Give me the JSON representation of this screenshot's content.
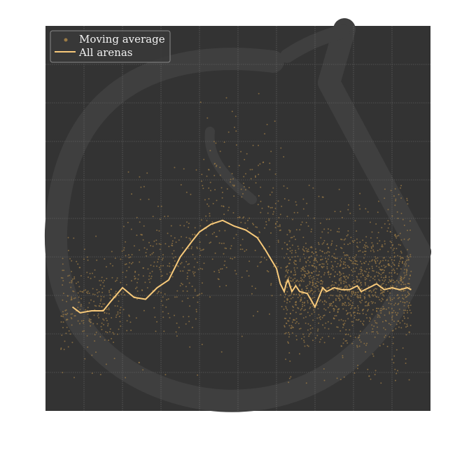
{
  "chart_data": {
    "type": "scatter",
    "title": "",
    "xlabel": "",
    "ylabel": "",
    "xlim": [
      0,
      100
    ],
    "ylim": [
      0,
      100
    ],
    "grid": true,
    "legend_location": "top-left",
    "colors": {
      "background": "#333333",
      "scatter": "#9a7a45",
      "line": "#f7c97a",
      "grid": "#6e6e6e",
      "watermark": "#3f3f3f"
    },
    "series": [
      {
        "name": "Moving average",
        "kind": "scatter",
        "description": "dense cloud of faint points; sparse for x<62, very dense for x>62",
        "bands": [
          {
            "x": [
              4,
              20
            ],
            "y_center": 28,
            "y_spread": 10
          },
          {
            "x": [
              20,
              40
            ],
            "y_center": 36,
            "y_spread": 14
          },
          {
            "x": [
              40,
              62
            ],
            "y_center": 50,
            "y_spread": 18
          },
          {
            "x": [
              62,
              95
            ],
            "y_center": 33,
            "y_spread": 13
          }
        ]
      },
      {
        "name": "All arenas",
        "kind": "line",
        "x": [
          7,
          9,
          12,
          15,
          17,
          20,
          23,
          26,
          29,
          32,
          35,
          38,
          40,
          43,
          46,
          49,
          52,
          55,
          57,
          60,
          61,
          62,
          62.5,
          63,
          64,
          65,
          66,
          68,
          70,
          72,
          73,
          75,
          77,
          79,
          81,
          82,
          84,
          86,
          88,
          90,
          92,
          94,
          95
        ],
        "y": [
          27,
          25.5,
          26,
          26,
          28.5,
          32,
          29.5,
          29,
          32,
          34,
          40,
          44,
          46.5,
          48.5,
          49.5,
          48,
          47,
          45,
          42,
          37,
          33,
          31,
          33,
          34,
          31,
          32.5,
          31,
          30.5,
          27,
          32,
          31,
          32,
          31.5,
          31.5,
          32.5,
          31,
          32,
          33,
          31.5,
          32,
          31.5,
          32,
          31.5
        ]
      }
    ]
  }
}
